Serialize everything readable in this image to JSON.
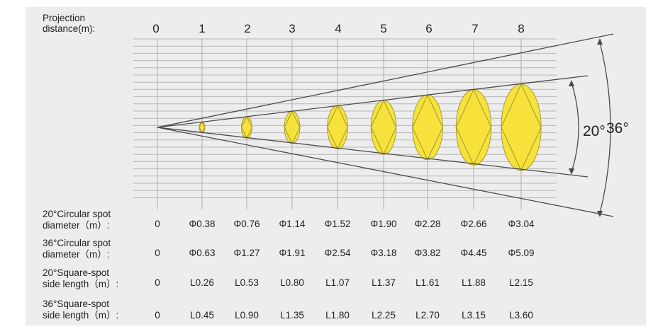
{
  "header": {
    "line1": "Projection",
    "line2": "distance(m):"
  },
  "distances": [
    "0",
    "1",
    "2",
    "3",
    "4",
    "5",
    "6",
    "7",
    "8"
  ],
  "angles": {
    "inner": "20°",
    "outer": "36°"
  },
  "spots": {
    "inner_diameters_m": [
      0,
      0.38,
      0.76,
      1.14,
      1.52,
      1.9,
      2.28,
      2.66,
      3.04
    ]
  },
  "colors": {
    "panel": "#ededed",
    "grid": "#b8b8b8",
    "beam": "#4a4a4a",
    "spot_fill": "#f6e23a",
    "spot_stroke": "#a89a3a"
  },
  "rows": [
    {
      "label1": "20°Circular spot",
      "label2": "diameter（m）:",
      "values": [
        "0",
        "Φ0.38",
        "Φ0.76",
        "Φ1.14",
        "Φ1.52",
        "Φ1.90",
        "Φ2.28",
        "Φ2.66",
        "Φ3.04"
      ]
    },
    {
      "label1": "36°Circular spot",
      "label2": "diameter（m）:",
      "values": [
        "0",
        "Φ0.63",
        "Φ1.27",
        "Φ1.91",
        "Φ2.54",
        "Φ3.18",
        "Φ3.82",
        "Φ4.45",
        "Φ5.09"
      ]
    },
    {
      "label1": "20°Square-spot",
      "label2": "side length（m）:",
      "values": [
        "0",
        "L0.26",
        "L0.53",
        "L0.80",
        "L1.07",
        "L1.37",
        "L1.61",
        "L1.88",
        "L2.15"
      ]
    },
    {
      "label1": "36°Square-spot",
      "label2": "side length（m）:",
      "values": [
        "0",
        "L0.45",
        "L0.90",
        "L1.35",
        "L1.80",
        "L2.25",
        "L2.70",
        "L3.15",
        "L3.60"
      ]
    }
  ]
}
